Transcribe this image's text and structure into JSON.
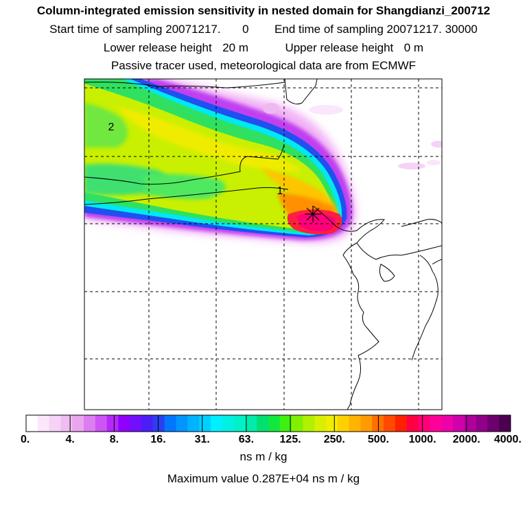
{
  "header": {
    "title": "Column-integrated emission sensitivity in nested domain for Shangdianzi_200712",
    "start_label": "Start time of sampling",
    "start_value": "20071217.",
    "start_time": "0",
    "end_label": "End time of sampling",
    "end_value": "20071217. 30000",
    "lower_label": "Lower release height",
    "lower_value": "20 m",
    "upper_label": "Upper release height",
    "upper_value": "0 m",
    "note": "Passive tracer used, meteorological data are from ECMWF"
  },
  "map": {
    "labels": [
      "1",
      "2"
    ],
    "release_site": "Shangdianzi"
  },
  "colorbar": {
    "ticks": [
      "0.",
      "4.",
      "8.",
      "16.",
      "31.",
      "63.",
      "125.",
      "250.",
      "500.",
      "1000.",
      "2000.",
      "4000."
    ],
    "colors": [
      "#ffffff",
      "#fbe6fb",
      "#f6d2f6",
      "#efbdf0",
      "#e8a6ee",
      "#dd7df0",
      "#cd55f5",
      "#b428f8",
      "#9000ff",
      "#7010ff",
      "#4b1ef8",
      "#2a40f0",
      "#0077ff",
      "#0095ff",
      "#00b3ff",
      "#00cfff",
      "#00efff",
      "#00f0e4",
      "#00f0c8",
      "#00ecaa",
      "#00e070",
      "#10e840",
      "#40f010",
      "#80f000",
      "#b0f000",
      "#d8f000",
      "#f0ee00",
      "#ffd000",
      "#ffb400",
      "#ff9a00",
      "#ff7000",
      "#ff4a00",
      "#ff2000",
      "#ff0044",
      "#ff0077",
      "#ff0099",
      "#ee00aa",
      "#d000aa",
      "#b00099",
      "#900088",
      "#6d006d",
      "#4b0050"
    ],
    "unit": "ns m / kg",
    "max_label": "Maximum value",
    "max_value": "0.287E+04",
    "max_unit": "ns m / kg"
  }
}
